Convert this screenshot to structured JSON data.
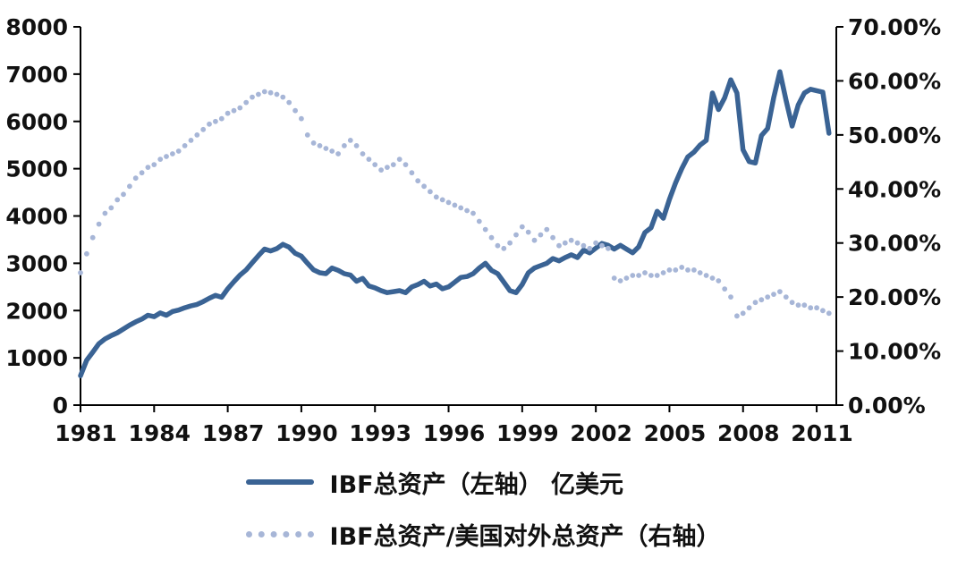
{
  "colors": {
    "background": "#ffffff",
    "axis": "#000000",
    "tick_text": "#111111",
    "series_solid": "#3a6394",
    "series_dotted": "#a7b6d7"
  },
  "legend": {
    "items": [
      {
        "label": "IBF总资产（左轴） 亿美元",
        "style": "solid"
      },
      {
        "label": "IBF总资产/美国对外总资产（右轴）",
        "style": "dotted"
      }
    ]
  },
  "chart_data": {
    "type": "line",
    "title": "",
    "grid": false,
    "legend_position": "bottom",
    "x_axis": {
      "range": [
        1981,
        2011.8
      ],
      "tick_values": [
        1981,
        1984,
        1987,
        1990,
        1993,
        1996,
        1999,
        2002,
        2005,
        2008,
        2011
      ],
      "tick_labels": [
        "1981",
        "1984",
        "1987",
        "1990",
        "1993",
        "1996",
        "1999",
        "2002",
        "2005",
        "2008",
        "2011"
      ]
    },
    "left_axis": {
      "min": 0,
      "max": 8000,
      "tick_values": [
        0,
        1000,
        2000,
        3000,
        4000,
        5000,
        6000,
        7000,
        8000
      ],
      "tick_labels": [
        "0",
        "1000",
        "2000",
        "3000",
        "4000",
        "5000",
        "6000",
        "7000",
        "8000"
      ]
    },
    "right_axis": {
      "min": 0,
      "max": 70,
      "tick_values": [
        0,
        10,
        20,
        30,
        40,
        50,
        60,
        70
      ],
      "tick_labels": [
        "0.00%",
        "10.00%",
        "20.00%",
        "30.00%",
        "40.00%",
        "50.00%",
        "60.00%",
        "70.00%"
      ]
    },
    "series": [
      {
        "id": "ibf_assets",
        "name": "IBF总资产（左轴） 亿美元",
        "axis": "left",
        "style": "solid",
        "color": "#3a6394",
        "x_start": 1981,
        "x_step": 0.25,
        "values": [
          620,
          950,
          1120,
          1300,
          1400,
          1470,
          1530,
          1610,
          1690,
          1760,
          1820,
          1900,
          1870,
          1950,
          1900,
          1980,
          2010,
          2060,
          2100,
          2130,
          2190,
          2260,
          2320,
          2280,
          2460,
          2610,
          2750,
          2860,
          3010,
          3160,
          3300,
          3260,
          3310,
          3400,
          3340,
          3210,
          3150,
          3000,
          2860,
          2800,
          2780,
          2900,
          2850,
          2780,
          2750,
          2620,
          2680,
          2520,
          2480,
          2420,
          2380,
          2400,
          2420,
          2380,
          2500,
          2550,
          2620,
          2520,
          2560,
          2460,
          2500,
          2600,
          2700,
          2720,
          2780,
          2900,
          3000,
          2850,
          2780,
          2600,
          2420,
          2380,
          2550,
          2800,
          2900,
          2950,
          3000,
          3100,
          3050,
          3120,
          3180,
          3120,
          3280,
          3220,
          3320,
          3420,
          3380,
          3300,
          3380,
          3300,
          3220,
          3350,
          3650,
          3750,
          4100,
          3950,
          4350,
          4700,
          5000,
          5250,
          5350,
          5500,
          5600,
          6600,
          6250,
          6500,
          6880,
          6600,
          5400,
          5150,
          5120,
          5700,
          5850,
          6500,
          7050,
          6450,
          5900,
          6350,
          6600,
          6680,
          6650,
          6620,
          5750
        ]
      },
      {
        "id": "ibf_ratio",
        "name": "IBF总资产/美国对外总资产（右轴）",
        "axis": "right",
        "style": "dotted",
        "color": "#a7b6d7",
        "x_start": 1981,
        "x_step": 0.25,
        "values": [
          24.5,
          28,
          31,
          33.5,
          35.5,
          36.5,
          38,
          39,
          40.5,
          42,
          43,
          44,
          44.5,
          45.5,
          46,
          46.5,
          47,
          48,
          49,
          50,
          51,
          52,
          52.5,
          53,
          54,
          54.5,
          55,
          56,
          57,
          57.5,
          58,
          57.8,
          57.5,
          57,
          56,
          54.5,
          53,
          50,
          48.5,
          48,
          47.5,
          47,
          46.5,
          48,
          49,
          48,
          46.5,
          45.5,
          44.5,
          43.5,
          44,
          44.5,
          45.5,
          44.5,
          43,
          41.5,
          40.5,
          39.5,
          38.5,
          38,
          37.5,
          37,
          36.5,
          36,
          35.5,
          34,
          32.5,
          31,
          29.5,
          29,
          30,
          31.5,
          33,
          32,
          30.5,
          31.5,
          32.5,
          31,
          29.5,
          30,
          30.5,
          30,
          29.5,
          29,
          30,
          29.5,
          29,
          23.5,
          23,
          23.5,
          24,
          24,
          24.5,
          24,
          24,
          24.5,
          25,
          25,
          25.5,
          25,
          25,
          24.5,
          24,
          23.5,
          23,
          21.5,
          20,
          16.5,
          17,
          18,
          19,
          19.5,
          20,
          20.5,
          21,
          20,
          19,
          18.5,
          18.5,
          18,
          18,
          17.5,
          17
        ]
      }
    ]
  }
}
